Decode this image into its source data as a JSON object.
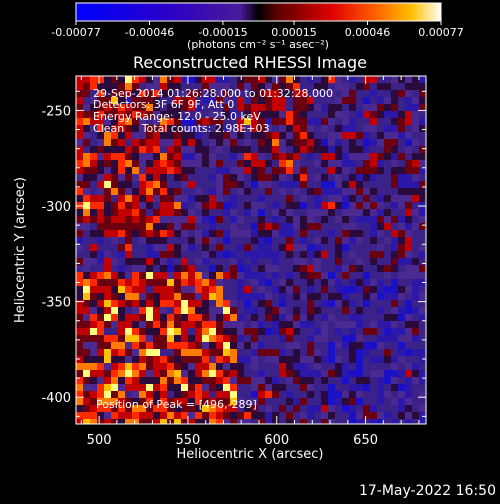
{
  "colorbar": {
    "tick_labels": [
      "-0.00077",
      "-0.00046",
      "-0.00015",
      "0.00015",
      "0.00046",
      "0.00077"
    ],
    "unit": "(photons cm⁻² s⁻¹ asec⁻²)",
    "range": [
      -0.00077,
      0.00077
    ]
  },
  "chart_data": {
    "type": "heatmap",
    "title": "Reconstructed RHESSI Image",
    "xlabel": "Heliocentric X (arcsec)",
    "ylabel": "Heliocentric Y (arcsec)",
    "xlim": [
      487,
      684
    ],
    "ylim": [
      -414,
      -232
    ],
    "x_ticks": [
      500,
      550,
      600,
      650
    ],
    "y_ticks": [
      -250,
      -300,
      -350,
      -400
    ],
    "info_lines": [
      "29-Sep-2014 01:26:28.000 to 01:32:28.000",
      "Detectors: 3F 6F 9F, Att 0",
      "Energy Range: 12.0 - 25.0 keV",
      "Clean     Total counts: 2.98E+03"
    ],
    "peak_label": "Position of Peak = [496,-289]",
    "peak_position": [
      496,
      -289
    ],
    "grid": false
  },
  "footer": {
    "date": "17-May-2022 16:50"
  }
}
